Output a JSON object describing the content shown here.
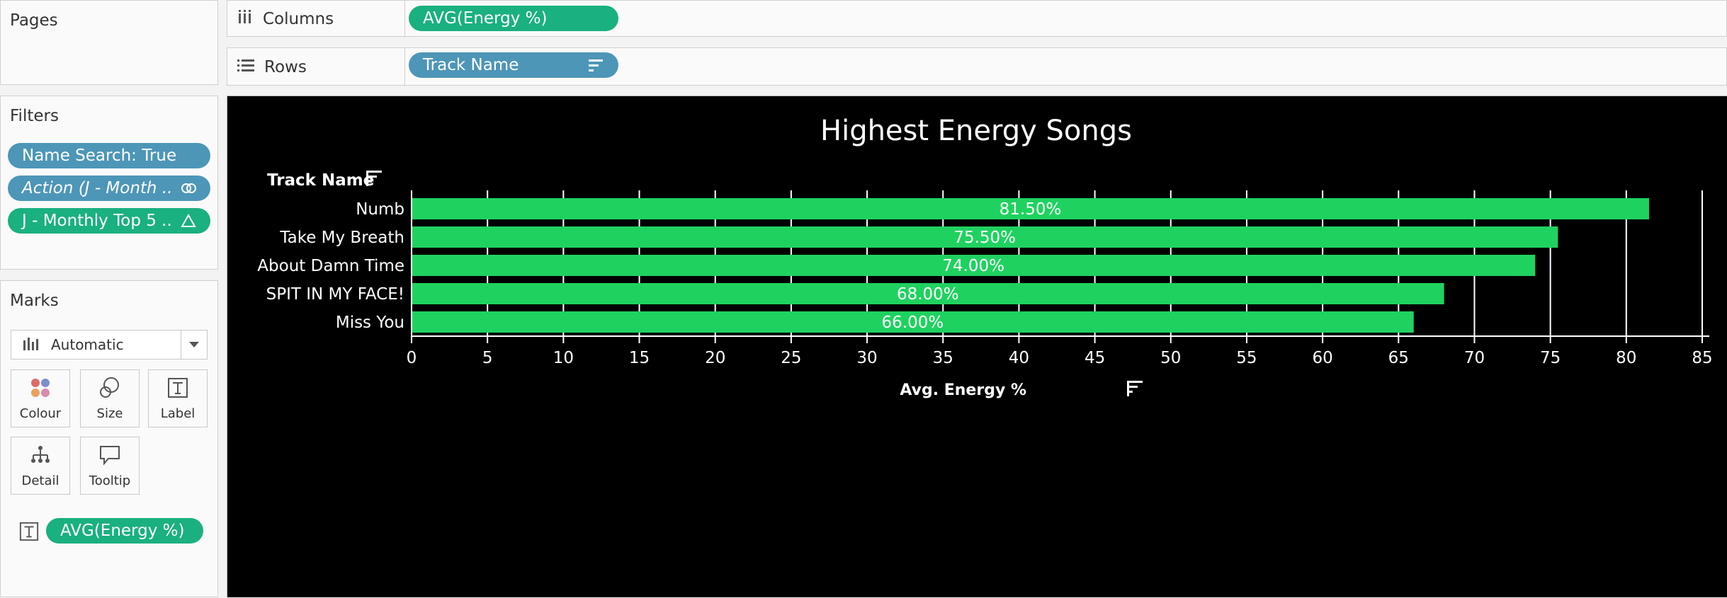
{
  "pages": {
    "title": "Pages"
  },
  "columns_shelf": {
    "label": "Columns",
    "pill": "AVG(Energy %)"
  },
  "rows_shelf": {
    "label": "Rows",
    "pill": "Track Name"
  },
  "filters": {
    "title": "Filters",
    "items": [
      {
        "label": "Name Search: True",
        "style": "blue",
        "icon": ""
      },
      {
        "label": "Action (J - Month ..",
        "style": "blue-italic",
        "icon": "link-icon"
      },
      {
        "label": "J - Monthly Top 5 ..",
        "style": "green",
        "icon": "delta-icon"
      }
    ]
  },
  "marks": {
    "title": "Marks",
    "type": "Automatic",
    "buttons": [
      "Colour",
      "Size",
      "Label",
      "Detail",
      "Tooltip"
    ],
    "label_pill": "AVG(Energy %)"
  },
  "colors": {
    "bar": "#1fd25f",
    "pill_green": "#1ab07f",
    "pill_blue": "#4d96b8",
    "background": "#000000"
  },
  "chart_data": {
    "type": "bar",
    "orientation": "horizontal",
    "title": "Highest Energy Songs",
    "ylabel": "Track Name",
    "xlabel": "Avg. Energy %",
    "categories": [
      "Numb",
      "Take My Breath",
      "About Damn Time",
      "SPIT IN MY FACE!",
      "Miss You"
    ],
    "values": [
      81.5,
      75.5,
      74.0,
      68.0,
      66.0
    ],
    "data_labels": [
      "81.50%",
      "75.50%",
      "74.00%",
      "68.00%",
      "66.00%"
    ],
    "xlim": [
      0,
      85
    ],
    "xticks": [
      0,
      5,
      10,
      15,
      20,
      25,
      30,
      35,
      40,
      45,
      50,
      55,
      60,
      65,
      70,
      75,
      80,
      85
    ],
    "grid": "vertical"
  }
}
